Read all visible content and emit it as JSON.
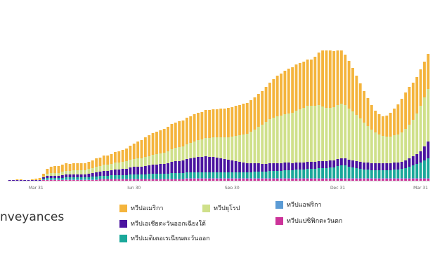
{
  "chart_data": {
    "type": "bar",
    "stacked": true,
    "title": "nveyances",
    "xlabel": "",
    "ylabel": "",
    "x_tick_labels": [
      "Mar 31",
      "Jun 30",
      "Sep 30",
      "Dec 31",
      "Mar 31"
    ],
    "x_tick_index": [
      7,
      33,
      59,
      87,
      109
    ],
    "ylim": [
      0,
      253
    ],
    "grid": false,
    "legend_placement": "bottom",
    "series": [
      {
        "name": "ทวีปแปซิฟิกตะวันตก",
        "color": "#cc3399",
        "values": [
          0,
          0,
          0,
          0,
          0,
          0,
          0,
          0,
          0,
          1,
          1,
          1,
          1,
          1,
          1,
          1,
          1,
          1,
          1,
          1,
          1,
          1,
          1,
          1,
          2,
          2,
          2,
          2,
          2,
          2,
          2,
          2,
          2,
          2,
          2,
          2,
          2,
          2,
          2,
          2,
          2,
          2,
          2,
          2,
          2,
          2,
          2,
          3,
          3,
          3,
          3,
          3,
          3,
          3,
          3,
          3,
          3,
          3,
          3,
          3,
          3,
          3,
          3,
          3,
          3,
          3,
          3,
          3,
          3,
          3,
          3,
          3,
          3,
          3,
          3,
          3,
          3,
          3,
          3,
          3,
          3,
          3,
          3,
          3,
          3,
          3,
          3,
          3,
          3,
          3,
          3,
          3,
          3,
          3,
          3,
          3,
          3,
          3,
          3,
          3,
          3,
          3,
          3,
          3,
          3,
          3,
          3,
          3,
          3,
          3,
          3,
          3
        ]
      },
      {
        "name": "ทวีปแอฟริกา",
        "color": "#5b9bd5",
        "values": [
          0,
          0,
          0,
          0,
          0,
          0,
          0,
          0,
          0,
          1,
          1,
          1,
          1,
          1,
          1,
          1,
          1,
          1,
          1,
          1,
          1,
          1,
          1,
          1,
          1,
          1,
          1,
          1,
          1,
          1,
          1,
          1,
          1,
          1,
          1,
          1,
          1,
          1,
          1,
          1,
          1,
          1,
          1,
          1,
          1,
          1,
          1,
          1,
          1,
          1,
          1,
          1,
          1,
          1,
          1,
          1,
          1,
          1,
          1,
          1,
          1,
          1,
          1,
          1,
          1,
          1,
          1,
          1,
          1,
          1,
          1,
          1,
          1,
          1,
          1,
          1,
          1,
          1,
          1,
          1,
          1,
          1,
          1,
          1,
          1,
          1,
          1,
          1,
          1,
          1,
          1,
          1,
          1,
          1,
          1,
          1,
          1,
          1,
          1,
          1,
          1,
          1,
          1,
          1,
          1,
          1,
          1,
          1,
          1,
          1,
          1,
          1
        ]
      },
      {
        "name": "ทวีปเมดิเตอเรเนียนตะวันออก",
        "color": "#1aa89a",
        "values": [
          0,
          0,
          0,
          0,
          0,
          0,
          0,
          0,
          0,
          1,
          2,
          2,
          2,
          2,
          2,
          3,
          3,
          3,
          3,
          3,
          3,
          3,
          4,
          4,
          4,
          4,
          4,
          5,
          5,
          5,
          5,
          5,
          6,
          6,
          6,
          6,
          6,
          7,
          7,
          7,
          7,
          7,
          7,
          8,
          8,
          8,
          8,
          8,
          8,
          8,
          8,
          8,
          8,
          8,
          8,
          8,
          8,
          8,
          8,
          8,
          8,
          8,
          8,
          8,
          8,
          9,
          9,
          9,
          9,
          10,
          10,
          10,
          10,
          11,
          11,
          11,
          12,
          12,
          12,
          13,
          13,
          13,
          14,
          14,
          14,
          15,
          15,
          17,
          18,
          18,
          16,
          15,
          14,
          13,
          12,
          12,
          11,
          11,
          11,
          11,
          11,
          11,
          12,
          12,
          13,
          14,
          16,
          18,
          20,
          22,
          25,
          28
        ]
      },
      {
        "name": "ทวีปเอเชียตะวันออกเฉียงใต้",
        "color": "#4a14a0",
        "values": [
          1,
          1,
          1,
          1,
          1,
          1,
          1,
          1,
          1,
          2,
          3,
          3,
          3,
          3,
          4,
          4,
          4,
          4,
          4,
          4,
          4,
          5,
          5,
          6,
          6,
          7,
          7,
          7,
          8,
          8,
          9,
          9,
          10,
          11,
          11,
          11,
          12,
          12,
          13,
          13,
          14,
          14,
          15,
          16,
          17,
          17,
          18,
          19,
          20,
          21,
          22,
          22,
          23,
          22,
          22,
          21,
          20,
          19,
          18,
          17,
          16,
          15,
          14,
          13,
          13,
          12,
          12,
          11,
          11,
          11,
          11,
          11,
          11,
          11,
          11,
          10,
          10,
          10,
          10,
          10,
          10,
          10,
          10,
          10,
          10,
          10,
          10,
          10,
          10,
          10,
          10,
          10,
          10,
          10,
          10,
          10,
          10,
          10,
          10,
          10,
          10,
          10,
          10,
          10,
          10,
          11,
          12,
          13,
          14,
          16,
          20,
          24
        ]
      },
      {
        "name": "ทวีปยุโรป",
        "color": "#cfe08a",
        "values": [
          0,
          0,
          0,
          0,
          0,
          0,
          0,
          0,
          0,
          1,
          3,
          4,
          4,
          4,
          5,
          5,
          5,
          6,
          6,
          6,
          6,
          7,
          7,
          8,
          8,
          9,
          9,
          9,
          10,
          10,
          10,
          11,
          11,
          11,
          12,
          12,
          13,
          13,
          14,
          15,
          15,
          16,
          17,
          18,
          19,
          20,
          20,
          21,
          22,
          23,
          24,
          25,
          26,
          27,
          28,
          29,
          30,
          31,
          32,
          34,
          36,
          38,
          40,
          42,
          45,
          48,
          52,
          56,
          60,
          63,
          65,
          67,
          68,
          69,
          70,
          72,
          74,
          76,
          78,
          80,
          80,
          80,
          80,
          78,
          76,
          75,
          76,
          77,
          78,
          76,
          73,
          70,
          66,
          62,
          57,
          52,
          48,
          44,
          41,
          39,
          38,
          38,
          39,
          40,
          42,
          45,
          48,
          52,
          58,
          65,
          70,
          75
        ]
      },
      {
        "name": "ทวีปอเมริกา",
        "color": "#f4b43c",
        "values": [
          0,
          0,
          1,
          1,
          0,
          0,
          1,
          2,
          3,
          4,
          7,
          9,
          10,
          10,
          10,
          11,
          10,
          10,
          10,
          10,
          10,
          10,
          11,
          12,
          12,
          13,
          13,
          14,
          15,
          16,
          17,
          18,
          20,
          22,
          24,
          26,
          28,
          30,
          31,
          32,
          33,
          34,
          35,
          36,
          36,
          37,
          37,
          38,
          38,
          39,
          39,
          39,
          40,
          40,
          40,
          40,
          41,
          41,
          42,
          42,
          43,
          43,
          44,
          44,
          45,
          46,
          47,
          48,
          50,
          52,
          55,
          58,
          60,
          62,
          64,
          65,
          66,
          66,
          66,
          66,
          66,
          70,
          75,
          80,
          82,
          82,
          80,
          78,
          76,
          72,
          68,
          62,
          56,
          50,
          45,
          40,
          35,
          31,
          29,
          28,
          30,
          34,
          38,
          43,
          48,
          52,
          54,
          53,
          52,
          52,
          51,
          50
        ]
      }
    ]
  }
}
